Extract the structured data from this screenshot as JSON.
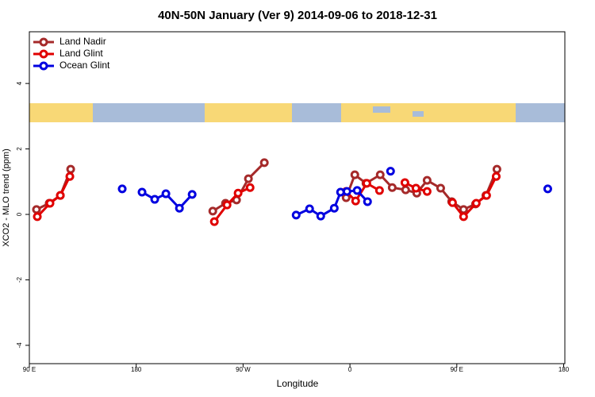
{
  "chart_data": {
    "type": "line",
    "title": "40N-50N January (Ver 9)   2014-09-06 to 2018-12-31",
    "x_label": "Longitude",
    "y_label": "XCO2 - MLO trend (ppm)",
    "xlim": [
      90,
      541
    ],
    "ylim": [
      -4.56,
      5.58
    ],
    "xticks": [
      {
        "value": 90,
        "label": "90 E"
      },
      {
        "value": 180,
        "label": "180"
      },
      {
        "value": 270,
        "label": "90 W"
      },
      {
        "value": 360,
        "label": "0"
      },
      {
        "value": 450,
        "label": "90 E"
      },
      {
        "value": 540,
        "label": "180"
      }
    ],
    "yticks": [
      -4,
      -2,
      0,
      2,
      4
    ],
    "legend": "top-left",
    "series": [
      {
        "name": "Land Nadir",
        "color": "#a52a2a",
        "x": [
          96.0,
          106.7,
          116.1,
          124.8,
          null,
          244.5,
          255.2,
          264.5,
          274.5,
          287.9,
          null,
          356.8,
          364.1,
          373.5,
          385.5,
          395.6,
          406.9,
          416.3,
          425.0,
          436.4,
          445.7,
          455.7,
          465.8,
          474.5,
          483.8
        ],
        "values": [
          0.15,
          0.34,
          0.58,
          1.38,
          null,
          0.1,
          0.34,
          0.44,
          1.09,
          1.58,
          null,
          0.51,
          1.21,
          0.95,
          1.21,
          0.82,
          0.75,
          0.65,
          1.04,
          0.8,
          0.39,
          0.15,
          0.32,
          0.58,
          1.38
        ]
      },
      {
        "name": "Land Glint",
        "color": "#e00000",
        "x": [
          96.7,
          107.4,
          116.1,
          124.1,
          null,
          245.8,
          256.5,
          265.8,
          275.9,
          null,
          356.8,
          364.8,
          374.2,
          384.9,
          null,
          406.3,
          415.6,
          425.0,
          null,
          446.4,
          455.7,
          466.4,
          475.1,
          483.2
        ],
        "values": [
          -0.07,
          0.34,
          0.58,
          1.16,
          null,
          -0.22,
          0.29,
          0.65,
          0.82,
          null,
          0.7,
          0.41,
          0.95,
          0.73,
          null,
          0.97,
          0.8,
          0.7,
          null,
          0.36,
          -0.07,
          0.34,
          0.58,
          1.16
        ]
      },
      {
        "name": "Ocean Glint",
        "color": "#0000e0",
        "x": [
          168.2,
          null,
          184.9,
          195.6,
          205.0,
          216.4,
          227.1,
          null,
          314.7,
          326.0,
          335.4,
          346.8,
          352.1,
          357.5,
          366.1,
          374.8,
          null,
          394.2,
          null,
          526.6
        ],
        "values": [
          0.78,
          null,
          0.68,
          0.46,
          0.63,
          0.19,
          0.61,
          null,
          -0.02,
          0.17,
          -0.05,
          0.19,
          0.68,
          0.7,
          0.73,
          0.39,
          null,
          1.32,
          null,
          0.78
        ]
      }
    ]
  }
}
